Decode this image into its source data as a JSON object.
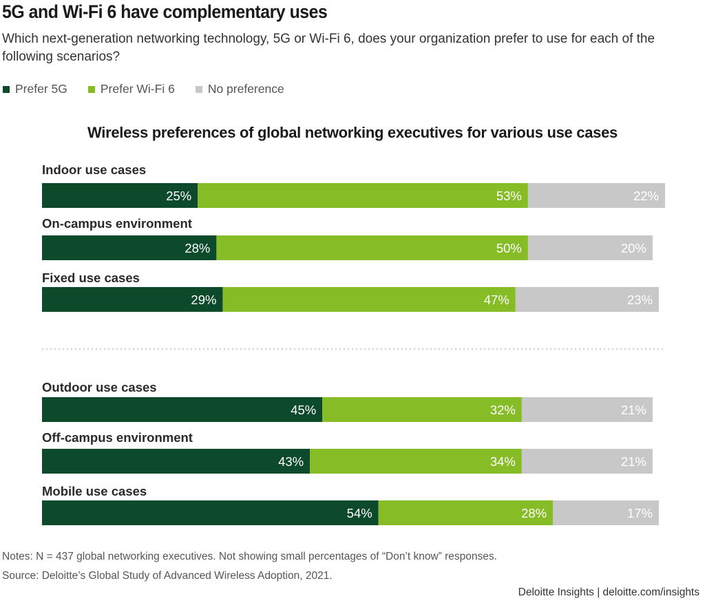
{
  "headline": "5G and Wi-Fi 6 have complementary uses",
  "question": "Which next-generation networking technology, 5G or Wi-Fi 6, does your organization prefer to use for each of the following scenarios?",
  "legend": [
    {
      "label": "Prefer 5G",
      "color": "#0d4a2b"
    },
    {
      "label": "Prefer Wi-Fi 6",
      "color": "#86bc25"
    },
    {
      "label": "No preference",
      "color": "#c8c8c8"
    }
  ],
  "chart_data": {
    "type": "bar",
    "orientation": "horizontal",
    "stacked": true,
    "title": "Wireless preferences of global networking executives for various use cases",
    "categories": [
      "Indoor use cases",
      "On-campus environment",
      "Fixed use cases",
      "Outdoor use cases",
      "Off-campus environment",
      "Mobile use cases"
    ],
    "series": [
      {
        "name": "Prefer 5G",
        "values": [
          25,
          28,
          29,
          45,
          43,
          54
        ],
        "color": "#0d4a2b"
      },
      {
        "name": "Prefer Wi-Fi 6",
        "values": [
          53,
          50,
          47,
          32,
          34,
          28
        ],
        "color": "#86bc25"
      },
      {
        "name": "No preference",
        "values": [
          22,
          20,
          23,
          21,
          21,
          17
        ],
        "color": "#c8c8c8"
      }
    ],
    "value_suffix": "%",
    "groups": [
      [
        0,
        1,
        2
      ],
      [
        3,
        4,
        5
      ]
    ],
    "xlim": [
      0,
      100
    ],
    "legend_position": "top-left",
    "grid": false
  },
  "notes": "Notes: N = 437 global networking executives. Not showing small percentages of “Don’t know” responses.",
  "source": "Source: Deloitte’s Global Study of Advanced Wireless Adoption, 2021.",
  "credit": "Deloitte Insights | deloitte.com/insights"
}
